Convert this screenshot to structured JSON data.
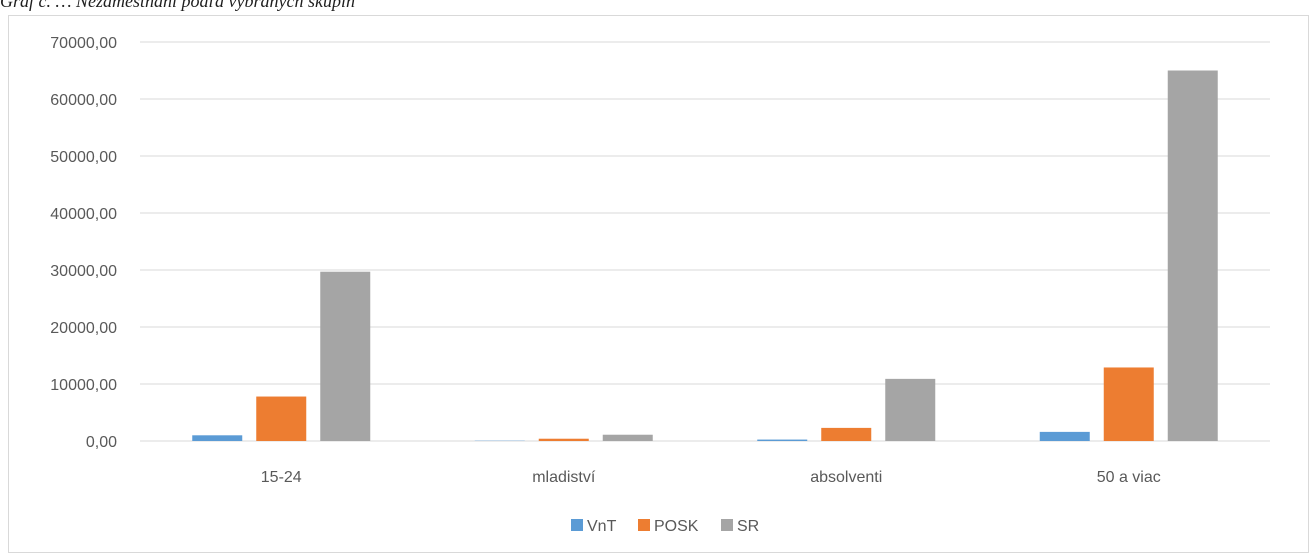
{
  "caption": "Graf č. … Nezamestnaní podľa vybraných skupín",
  "chart_data": {
    "type": "bar",
    "categories": [
      "15-24",
      "mladiství",
      "absolventi",
      "50 a viac"
    ],
    "series": [
      {
        "name": "VnT",
        "color": "#5b9bd5",
        "values": [
          1000,
          50,
          250,
          1600
        ]
      },
      {
        "name": "POSK",
        "color": "#ed7d31",
        "values": [
          7800,
          400,
          2300,
          12900
        ]
      },
      {
        "name": "SR",
        "color": "#a5a5a5",
        "values": [
          29700,
          1100,
          10900,
          65000
        ]
      }
    ],
    "y_ticks": [
      "0,00",
      "10000,00",
      "20000,00",
      "30000,00",
      "40000,00",
      "50000,00",
      "60000,00",
      "70000,00"
    ],
    "ylim": [
      0,
      70000
    ],
    "grid": true,
    "legend": "bottom",
    "title": "",
    "xlabel": "",
    "ylabel": ""
  }
}
